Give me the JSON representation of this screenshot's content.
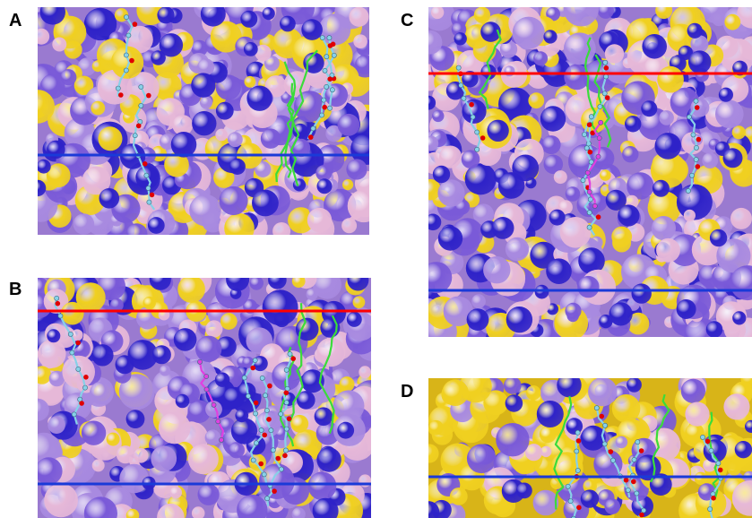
{
  "panels": [
    {
      "label": "A",
      "lines": [
        "blue"
      ]
    },
    {
      "label": "B",
      "lines": [
        "red",
        "blue"
      ]
    },
    {
      "label": "C",
      "lines": [
        "red",
        "blue"
      ]
    },
    {
      "label": "D",
      "lines": [
        "blue"
      ]
    }
  ],
  "colors": {
    "surface_yellow": "#f0d020",
    "surface_pink": "#e6b8d8",
    "surface_lavender": "#a88ae0",
    "surface_purple": "#7a5ad8",
    "surface_blue": "#2e22c8",
    "line_red": "#ff0000",
    "line_blue": "#1a3ad8",
    "stick_green": "#3adc3a",
    "stick_cyan": "#88d0e8",
    "stick_magenta": "#e040e0",
    "atom_red": "#e00000"
  }
}
